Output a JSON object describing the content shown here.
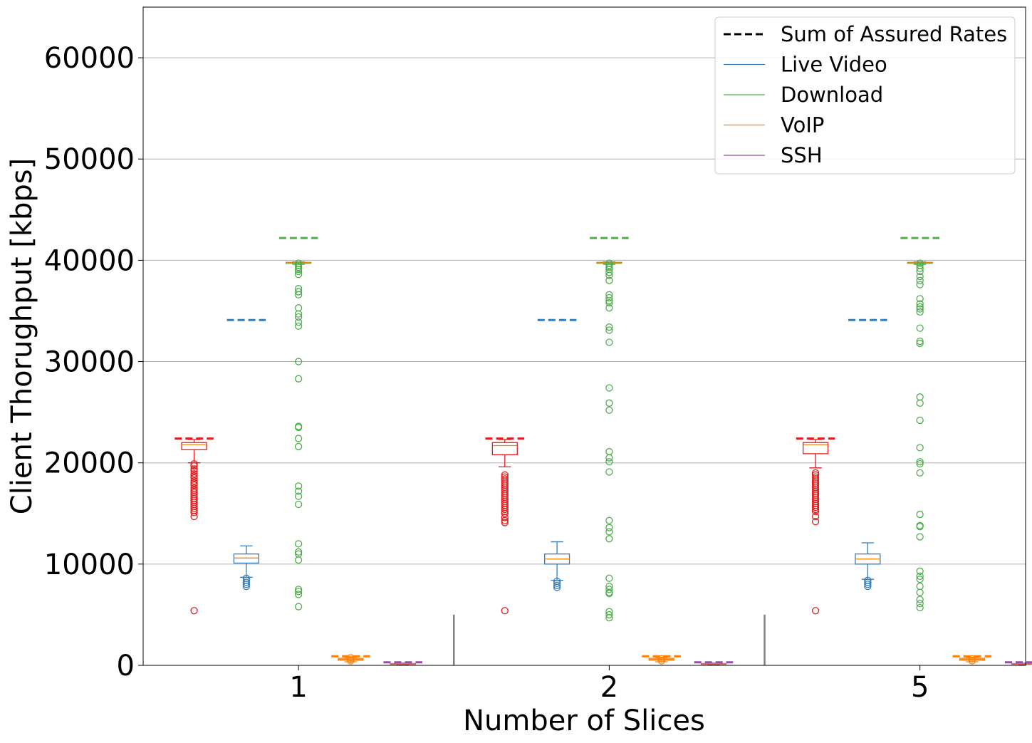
{
  "chart_data": {
    "type": "box",
    "xlabel": "Number of Slices",
    "ylabel": "Client Thorughput [kbps]",
    "categories": [
      "1",
      "2",
      "5"
    ],
    "ylim": [
      0,
      65000
    ],
    "yticks": [
      0,
      10000,
      20000,
      30000,
      40000,
      50000,
      60000
    ],
    "grid": "y",
    "legend_position": "top-right",
    "legend": [
      {
        "label": "Sum of Assured Rates",
        "color": "#000000",
        "style": "dashed"
      },
      {
        "label": "Live Video",
        "color": "#377eb8",
        "style": "solid"
      },
      {
        "label": "Download",
        "color": "#4daf4a",
        "style": "solid"
      },
      {
        "label": "VoIP",
        "color": "#ff7f00",
        "style": "solid"
      },
      {
        "label": "SSH",
        "color": "#984ea3",
        "style": "solid"
      }
    ],
    "group_separators": [
      1.5,
      2.5
    ],
    "separator_height": 5000,
    "groups": [
      {
        "category": "1",
        "boxes": [
          {
            "color": "#e41a1c",
            "offset": -0.336,
            "q1": 21300,
            "median": 21800,
            "q3": 22000,
            "whisker_low": 20000,
            "whisker_high": 22300,
            "assured": 22400,
            "outliers": [
              19900,
              19700,
              19400,
              19200,
              18900,
              18700,
              18500,
              18200,
              18000,
              17800,
              17500,
              17300,
              17100,
              16900,
              16700,
              16500,
              16300,
              16100,
              15900,
              15700,
              15500,
              15300,
              15100,
              14700,
              5400
            ]
          },
          {
            "color": "#377eb8",
            "offset": -0.168,
            "q1": 10100,
            "median": 10600,
            "q3": 11000,
            "whisker_low": 8700,
            "whisker_high": 11800,
            "assured": 34100,
            "outliers": [
              8600,
              8400,
              8200,
              8000,
              7800
            ]
          },
          {
            "color": "#4daf4a",
            "offset": 0,
            "q1": 39700,
            "median": 39750,
            "q3": 39800,
            "whisker_low": 39600,
            "whisker_high": 39850,
            "assured": 42200,
            "outliers": [
              39700,
              39500,
              39300,
              39100,
              38900,
              38600,
              37200,
              36900,
              36600,
              35300,
              34700,
              34400,
              33900,
              33500,
              30000,
              28300,
              23600,
              23500,
              22400,
              21600,
              17700,
              17200,
              16700,
              15900,
              12000,
              11200,
              11000,
              10400,
              7500,
              7300,
              7000,
              5800
            ]
          },
          {
            "color": "#ff7f00",
            "offset": 0.168,
            "q1": 500,
            "median": 600,
            "q3": 700,
            "whisker_low": 350,
            "whisker_high": 800,
            "assured": 900,
            "outliers": [
              450,
              600,
              750
            ]
          },
          {
            "color": "#984ea3",
            "offset": 0.336,
            "q1": 120,
            "median": 150,
            "q3": 180,
            "whisker_low": 80,
            "whisker_high": 220,
            "assured": 300,
            "outliers": []
          }
        ]
      },
      {
        "category": "2",
        "boxes": [
          {
            "color": "#e41a1c",
            "offset": -0.336,
            "q1": 20800,
            "median": 21700,
            "q3": 22000,
            "whisker_low": 19600,
            "whisker_high": 22300,
            "assured": 22400,
            "outliers": [
              18800,
              18600,
              18400,
              18200,
              18000,
              17800,
              17600,
              17400,
              17200,
              17000,
              16800,
              16600,
              16400,
              16200,
              16000,
              15800,
              15600,
              15400,
              15200,
              15000,
              14600,
              14300,
              14100,
              5400
            ]
          },
          {
            "color": "#377eb8",
            "offset": -0.168,
            "q1": 10000,
            "median": 10500,
            "q3": 11000,
            "whisker_low": 8400,
            "whisker_high": 12200,
            "assured": 34100,
            "outliers": [
              8300,
              8100,
              7900,
              7700
            ]
          },
          {
            "color": "#4daf4a",
            "offset": 0,
            "q1": 39700,
            "median": 39750,
            "q3": 39800,
            "whisker_low": 39600,
            "whisker_high": 39850,
            "assured": 42200,
            "outliers": [
              39700,
              39500,
              39300,
              39100,
              38800,
              38500,
              38000,
              36600,
              36300,
              36000,
              35800,
              35300,
              33400,
              33100,
              31900,
              27400,
              25900,
              25200,
              21100,
              20500,
              20100,
              19100,
              14300,
              13600,
              13200,
              12500,
              8600,
              7800,
              7500,
              7200,
              7100,
              5300,
              5000,
              4700
            ]
          },
          {
            "color": "#ff7f00",
            "offset": 0.168,
            "q1": 500,
            "median": 600,
            "q3": 700,
            "whisker_low": 350,
            "whisker_high": 800,
            "assured": 900,
            "outliers": [
              450,
              650
            ]
          },
          {
            "color": "#984ea3",
            "offset": 0.336,
            "q1": 120,
            "median": 150,
            "q3": 180,
            "whisker_low": 80,
            "whisker_high": 220,
            "assured": 300,
            "outliers": []
          }
        ]
      },
      {
        "category": "5",
        "boxes": [
          {
            "color": "#e41a1c",
            "offset": -0.336,
            "q1": 20900,
            "median": 21800,
            "q3": 22000,
            "whisker_low": 19500,
            "whisker_high": 22300,
            "assured": 22400,
            "outliers": [
              19000,
              18800,
              18600,
              18400,
              18200,
              18000,
              17800,
              17600,
              17400,
              17200,
              17000,
              16800,
              16600,
              16400,
              16200,
              16000,
              15800,
              15600,
              15400,
              15200,
              14700,
              14200,
              5400
            ]
          },
          {
            "color": "#377eb8",
            "offset": -0.168,
            "q1": 10000,
            "median": 10500,
            "q3": 11000,
            "whisker_low": 8500,
            "whisker_high": 12100,
            "assured": 34100,
            "outliers": [
              8400,
              8200,
              8000,
              7800
            ]
          },
          {
            "color": "#4daf4a",
            "offset": 0,
            "q1": 39700,
            "median": 39750,
            "q3": 39800,
            "whisker_low": 39600,
            "whisker_high": 39850,
            "assured": 42200,
            "outliers": [
              39700,
              39500,
              39200,
              38900,
              38400,
              38000,
              37600,
              36200,
              35700,
              35400,
              35200,
              34900,
              33300,
              32000,
              31800,
              26500,
              25900,
              24200,
              21500,
              20100,
              19900,
              19000,
              14900,
              13800,
              13700,
              12700,
              9300,
              8800,
              8500,
              7800,
              7200,
              6500,
              6100,
              5700
            ]
          },
          {
            "color": "#ff7f00",
            "offset": 0.168,
            "q1": 500,
            "median": 600,
            "q3": 700,
            "whisker_low": 350,
            "whisker_high": 800,
            "assured": 900,
            "outliers": [
              450,
              650
            ]
          },
          {
            "color": "#984ea3",
            "offset": 0.336,
            "q1": 120,
            "median": 150,
            "q3": 180,
            "whisker_low": 80,
            "whisker_high": 220,
            "assured": 300,
            "outliers": []
          }
        ]
      }
    ]
  }
}
